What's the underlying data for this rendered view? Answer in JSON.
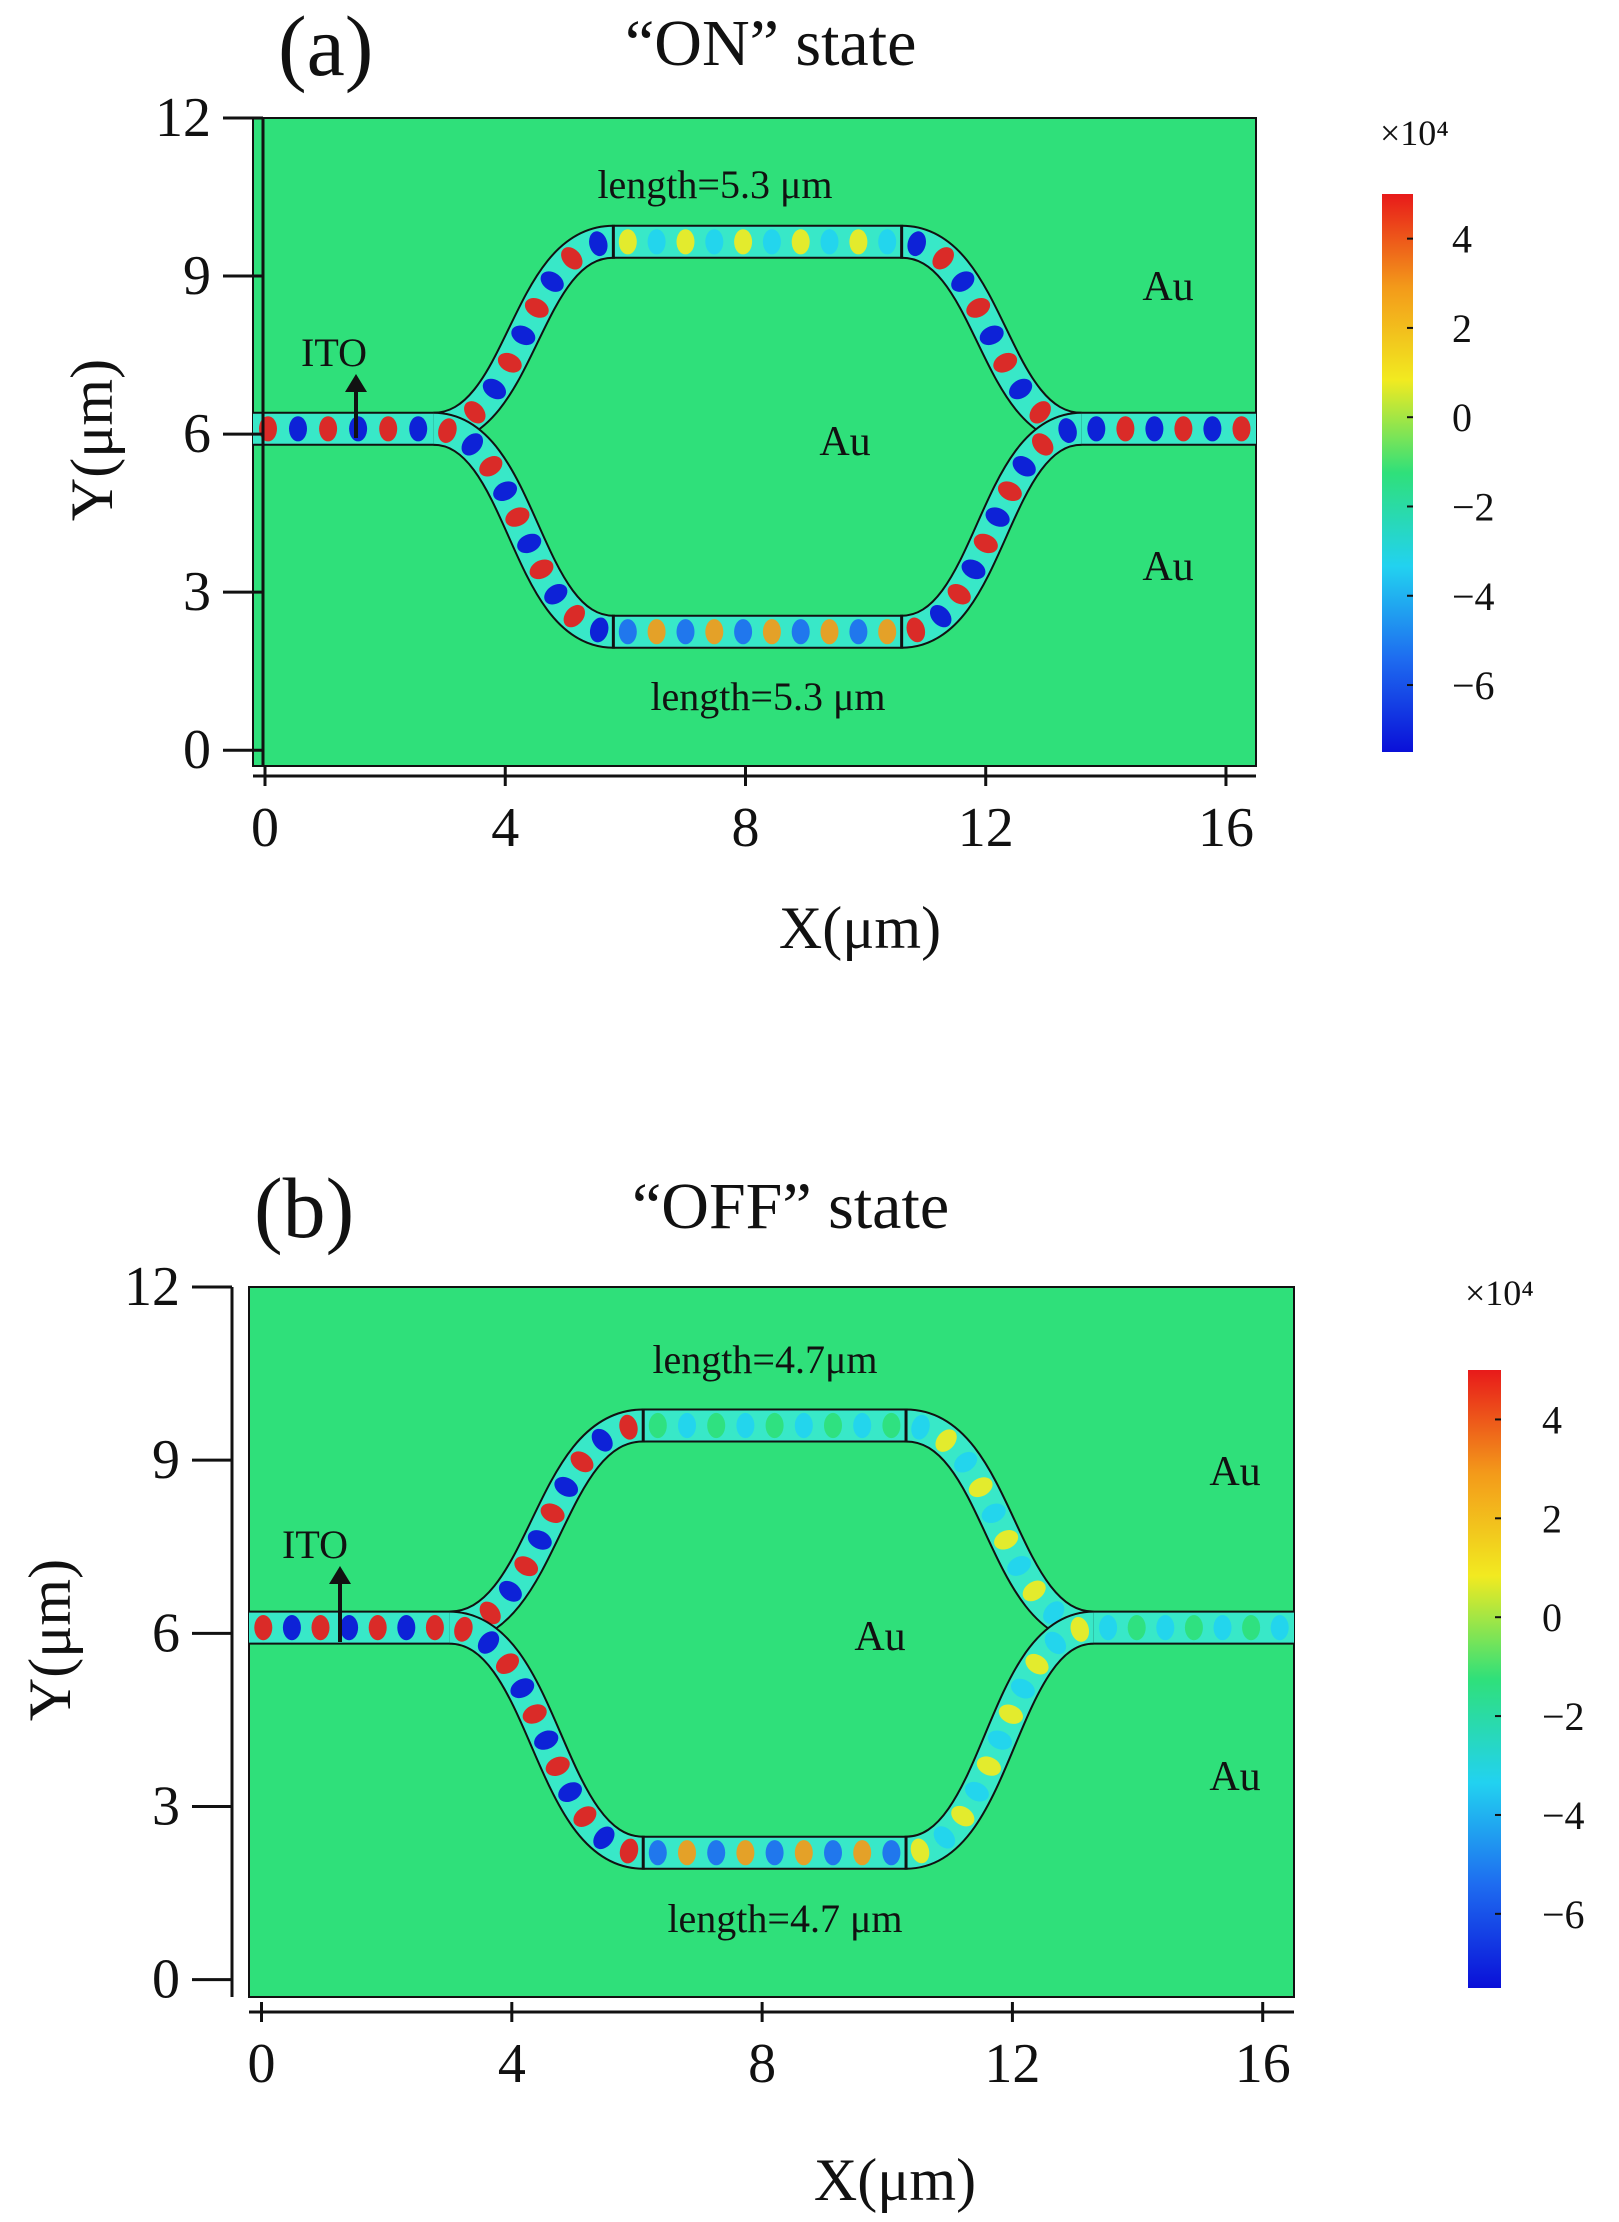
{
  "palette": {
    "background_field": "#2fe07a",
    "waveguide_fill": "#38e8c8",
    "outline": "#111111",
    "colormap": [
      "#0a10d8",
      "#1e6cf0",
      "#22d2f0",
      "#2fe07a",
      "#f2ea20",
      "#f39a1a",
      "#e81a1a"
    ]
  },
  "chart_data": [
    {
      "type": "heatmap",
      "panel_label": "(a)",
      "title": "“ON” state",
      "xlabel": "X(μm)",
      "ylabel": "Y(μm)",
      "xlim": [
        -0.2,
        16.5
      ],
      "ylim": [
        -0.3,
        12
      ],
      "x_ticks": [
        0,
        4,
        8,
        12,
        16
      ],
      "x_tick_labels": [
        "0",
        "4",
        "8",
        "12",
        "16"
      ],
      "y_ticks": [
        0,
        3,
        6,
        9,
        12
      ],
      "y_tick_labels": [
        "0",
        "3",
        "6",
        "9",
        "12"
      ],
      "colorbar": {
        "scale_label": "×10⁴",
        "range": [
          -7.5,
          5
        ],
        "ticks": [
          4,
          2,
          0,
          -2,
          -4,
          -6
        ],
        "tick_labels": [
          "4",
          "2",
          "0",
          "−2",
          "−4",
          "−6"
        ]
      },
      "annotations": {
        "top_arm": "length=5.3 μm",
        "bottom_arm": "length=5.3 μm",
        "ito": "ITO",
        "au_upper_right": "Au",
        "au_center": "Au",
        "au_lower_right": "Au"
      },
      "geometry": {
        "input_y": 6.1,
        "top_y": 9.65,
        "bottom_y": 2.25,
        "split_x": 2.8,
        "arm_start_x": 5.8,
        "arm_end_x": 10.6,
        "merge_x": 13.6
      },
      "field_intensity": {
        "input": 0.95,
        "upper_bend_left": 1.0,
        "top_arm": 0.35,
        "upper_bend_right": 0.85,
        "lower_bend_left": 1.0,
        "bottom_arm": 0.55,
        "lower_bend_right": 0.9,
        "output": 1.0
      }
    },
    {
      "type": "heatmap",
      "panel_label": "(b)",
      "title": "“OFF” state",
      "xlabel": "X(μm)",
      "ylabel": "Y(μm)",
      "xlim": [
        -0.2,
        16.5
      ],
      "ylim": [
        -0.3,
        12
      ],
      "x_ticks": [
        0,
        4,
        8,
        12,
        16
      ],
      "x_tick_labels": [
        "0",
        "4",
        "8",
        "12",
        "16"
      ],
      "y_ticks": [
        0,
        3,
        6,
        9,
        12
      ],
      "y_tick_labels": [
        "0",
        "3",
        "6",
        "9",
        "12"
      ],
      "colorbar": {
        "scale_label": "×10⁴",
        "range": [
          -7.5,
          5
        ],
        "ticks": [
          4,
          2,
          0,
          -2,
          -4,
          -6
        ],
        "tick_labels": [
          "4",
          "2",
          "0",
          "−2",
          "−4",
          "−6"
        ]
      },
      "annotations": {
        "top_arm": "length=4.7μm",
        "bottom_arm": "length=4.7 μm",
        "ito": "ITO",
        "au_upper_right": "Au",
        "au_center": "Au",
        "au_lower_right": "Au"
      },
      "geometry": {
        "input_y": 6.1,
        "top_y": 9.6,
        "bottom_y": 2.2,
        "split_x": 3.0,
        "arm_start_x": 6.1,
        "arm_end_x": 10.3,
        "merge_x": 13.3
      },
      "field_intensity": {
        "input": 0.8,
        "upper_bend_left": 1.0,
        "top_arm": 0.25,
        "upper_bend_right": 0.35,
        "lower_bend_left": 1.0,
        "bottom_arm": 0.55,
        "lower_bend_right": 0.4,
        "output": 0.15
      }
    }
  ]
}
